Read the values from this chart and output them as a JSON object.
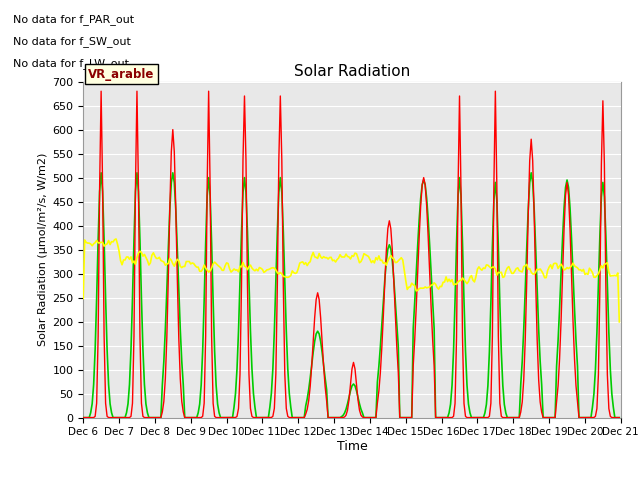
{
  "title": "Solar Radiation",
  "ylabel": "Solar Radiation (μmol/m²/s, W/m2)",
  "xlabel": "Time",
  "ylim": [
    0,
    700
  ],
  "xlim": [
    0,
    360
  ],
  "plot_bg": "#e8e8e8",
  "fig_bg": "#ffffff",
  "grid_color": "white",
  "no_data_texts": [
    "No data for f_PAR_out",
    "No data for f_SW_out",
    "No data for f_LW_out"
  ],
  "vr_arable_label": "VR_arable",
  "tick_labels": [
    "Dec 6",
    "Dec 7",
    "Dec 8",
    "Dec 9",
    "Dec 10",
    "Dec 11",
    "Dec 12",
    "Dec 13",
    "Dec 14",
    "Dec 15",
    "Dec 16",
    "Dec 17",
    "Dec 18",
    "Dec 19",
    "Dec 20",
    "Dec 21"
  ],
  "tick_positions": [
    0,
    24,
    48,
    72,
    96,
    120,
    144,
    168,
    192,
    216,
    240,
    264,
    288,
    312,
    336,
    360
  ],
  "par_color": "red",
  "sw_color": "#00cc00",
  "lw_color": "yellow",
  "par_peaks": [
    680,
    680,
    600,
    680,
    670,
    670,
    260,
    115,
    410,
    500,
    670,
    680,
    580,
    490,
    660
  ],
  "par_widths": [
    1.2,
    1.2,
    2.5,
    1.2,
    1.5,
    1.5,
    3.0,
    2.0,
    3.5,
    4.0,
    1.2,
    1.2,
    2.5,
    3.0,
    1.5
  ],
  "sw_peaks": [
    510,
    510,
    510,
    500,
    500,
    500,
    180,
    70,
    360,
    495,
    500,
    490,
    510,
    495,
    490
  ],
  "sw_widths": [
    2.5,
    2.5,
    3.5,
    2.5,
    2.8,
    2.8,
    4.0,
    3.0,
    4.5,
    5.0,
    2.5,
    2.5,
    3.5,
    4.0,
    2.8
  ],
  "lw_daily_means": [
    365,
    335,
    325,
    310,
    310,
    305,
    330,
    335,
    330,
    270,
    285,
    310,
    305,
    315,
    305
  ],
  "par_centers": [
    12,
    12,
    12,
    12,
    12,
    12,
    13,
    13,
    13,
    12,
    12,
    12,
    12,
    12,
    12
  ],
  "sw_centers": [
    12,
    12,
    12,
    12,
    12,
    12,
    13,
    13,
    13,
    12,
    12,
    12,
    12,
    12,
    12
  ]
}
